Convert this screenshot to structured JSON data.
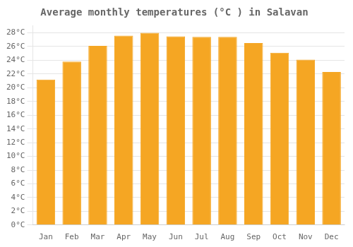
{
  "chart_data": {
    "type": "bar",
    "title": "Average monthly temperatures (°C ) in Salavan",
    "categories": [
      "Jan",
      "Feb",
      "Mar",
      "Apr",
      "May",
      "Jun",
      "Jul",
      "Aug",
      "Sep",
      "Oct",
      "Nov",
      "Dec"
    ],
    "values": [
      21.2,
      23.8,
      26.1,
      27.6,
      28.0,
      27.5,
      27.4,
      27.4,
      26.5,
      25.1,
      24.1,
      22.3
    ],
    "color": "#F5A623",
    "ylim": [
      0,
      29
    ],
    "yticks": [
      {
        "value": 0,
        "label": "0°C"
      },
      {
        "value": 2,
        "label": "2°C"
      },
      {
        "value": 4,
        "label": "4°C"
      },
      {
        "value": 6,
        "label": "6°C"
      },
      {
        "value": 8,
        "label": "8°C"
      },
      {
        "value": 10,
        "label": "10°C"
      },
      {
        "value": 12,
        "label": "12°C"
      },
      {
        "value": 14,
        "label": "14°C"
      },
      {
        "value": 16,
        "label": "16°C"
      },
      {
        "value": 18,
        "label": "18°C"
      },
      {
        "value": 20,
        "label": "20°C"
      },
      {
        "value": 22,
        "label": "22°C"
      },
      {
        "value": 24,
        "label": "24°C"
      },
      {
        "value": 26,
        "label": "26°C"
      },
      {
        "value": 28,
        "label": "28°C"
      }
    ],
    "grid": true
  }
}
